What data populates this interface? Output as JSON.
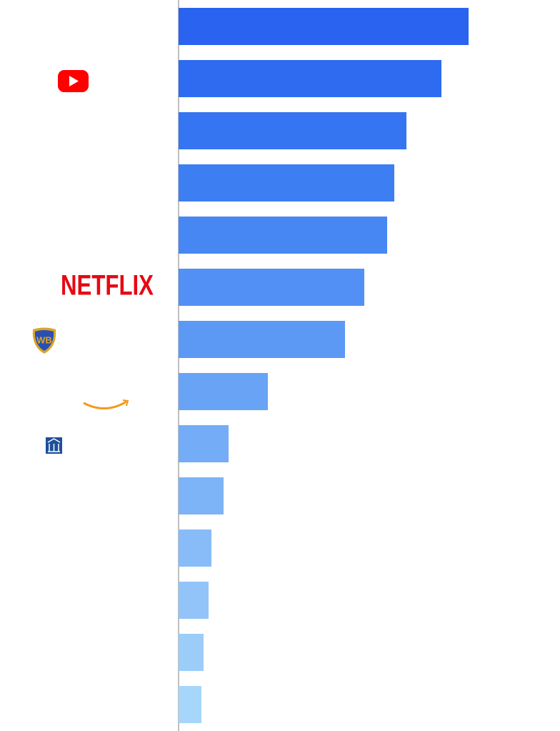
{
  "chart_data": {
    "type": "hbar",
    "categories": [
      null,
      null,
      null,
      null,
      null,
      "NETFLIX",
      null,
      null,
      null,
      null,
      null,
      null,
      null,
      null
    ],
    "values": [
      406,
      368,
      319,
      302,
      292,
      260,
      233,
      125,
      70,
      63,
      46,
      42,
      35,
      32
    ],
    "colors": [
      "#2963f0",
      "#2e6bf1",
      "#3575f2",
      "#3e7ef3",
      "#4787f4",
      "#5290f5",
      "#5c99f5",
      "#69a3f6",
      "#74acf7",
      "#7db3f7",
      "#88bcf8",
      "#92c4f9",
      "#9ccdf9",
      "#a6d6fa"
    ],
    "xlim": [
      0,
      534
    ]
  }
}
